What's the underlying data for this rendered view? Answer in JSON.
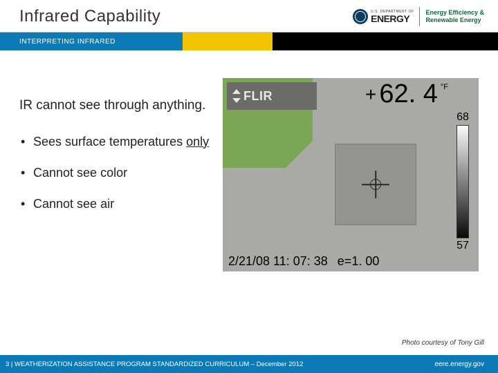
{
  "header": {
    "title": "Infrared Capability",
    "doe_small": "U.S. DEPARTMENT OF",
    "doe_big": "ENERGY",
    "eere_line1": "Energy Efficiency &",
    "eere_line2": "Renewable Energy"
  },
  "band": {
    "subtitle": "INTERPRETING INFRARED",
    "colors": {
      "blue": "#0d7ab8",
      "yellow": "#f2c500",
      "black": "#000000"
    }
  },
  "content": {
    "intro": "IR cannot see through anything.",
    "bullets": [
      {
        "pre": "Sees surface temperatures ",
        "only": "only"
      },
      {
        "pre": "Cannot see color"
      },
      {
        "pre": "Cannot see air"
      }
    ]
  },
  "thermal": {
    "brand": "FLIR",
    "reading_value": "62. 4",
    "reading_unit": "°F",
    "scale_top": "68",
    "scale_bot": "57",
    "timestamp": "2/21/08 11: 07: 38",
    "emissivity": "e=1. 00",
    "colors": {
      "background": "#a9a9a8",
      "green_shape": "#7ba653",
      "flir_bar": "#6b6b6a",
      "target_box": "#939392"
    }
  },
  "credit": "Photo courtesy of Tony Gill",
  "footer": {
    "left": "3 | WEATHERIZATION ASSISTANCE PROGRAM STANDARDIZED CURRICULUM – December 2012",
    "right": "eere.energy.gov"
  }
}
